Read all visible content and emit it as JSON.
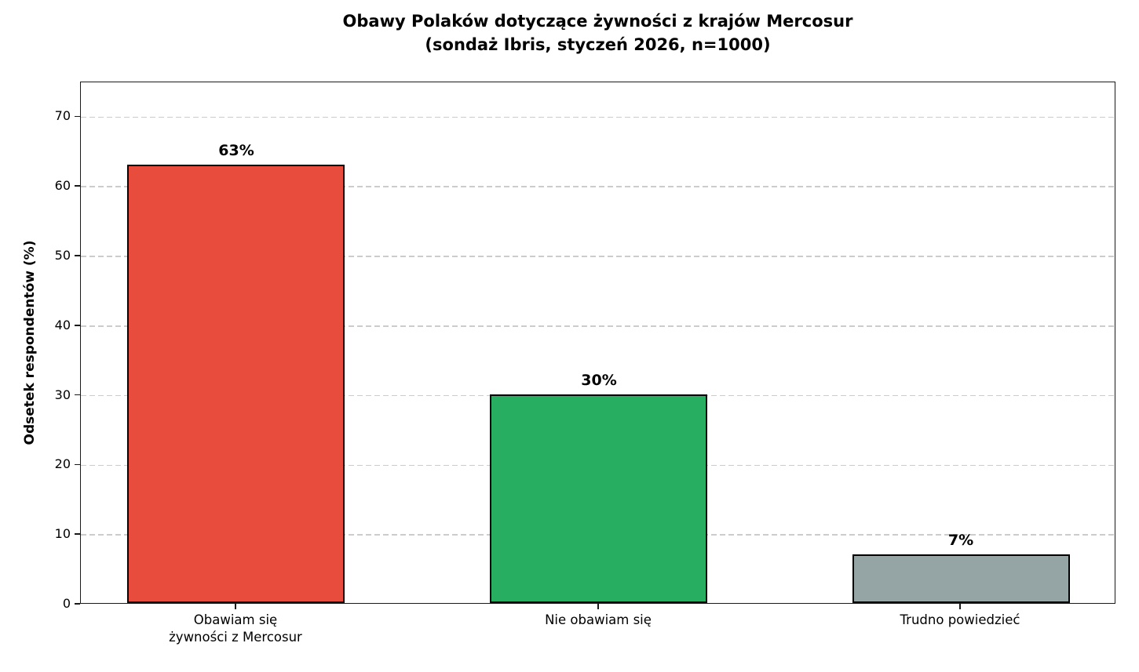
{
  "title": "Obawy Polaków dotyczące żywności z krajów Mercosur",
  "subtitle": "(sondaż Ibris, styczeń 2026, n=1000)",
  "chart_data": {
    "type": "bar",
    "title": "Obawy Polaków dotyczące żywności z krajów Mercosur",
    "subtitle": "(sondaż Ibris, styczeń 2026, n=1000)",
    "categories": [
      "Obawiam się\nżywności z Mercosur",
      "Nie obawiam się",
      "Trudno powiedzieć"
    ],
    "values": [
      63,
      30,
      7
    ],
    "value_labels": [
      "63%",
      "30%",
      "7%"
    ],
    "bar_colors": [
      "#e74c3c",
      "#27ae60",
      "#95a5a6"
    ],
    "bar_edge_color": "#000000",
    "xlabel": "",
    "ylabel": "Odsetek respondentów (%)",
    "ylim": [
      0,
      75
    ],
    "yticks": [
      0,
      10,
      20,
      30,
      40,
      50,
      60,
      70
    ],
    "grid": "horizontal-dashed",
    "gridline_color": "#cccccc",
    "legend": "none",
    "background_color": "#ffffff"
  }
}
